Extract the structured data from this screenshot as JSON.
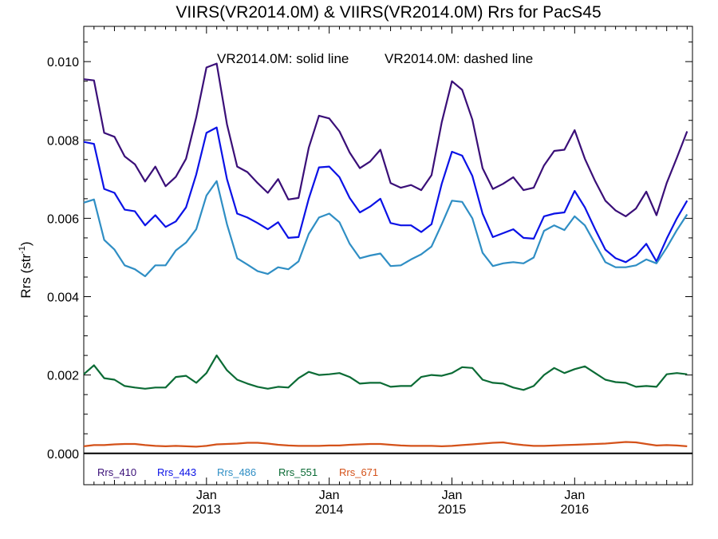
{
  "chart_data": {
    "type": "line",
    "title": "VIIRS(VR2014.0M) & VIIRS(VR2014.0M)  Rrs for PacS45",
    "annotation_solid": "VR2014.0M: solid line",
    "annotation_dashed": "VR2014.0M: dashed line",
    "ylabel_main": "Rrs (str",
    "ylabel_sup": "-1",
    "ylabel_end": ")",
    "xlabel": "",
    "ylim": [
      -0.0008,
      0.0109
    ],
    "xlim": [
      2012.0,
      2016.96
    ],
    "yticks": [
      {
        "value": 0.0,
        "label": "0.000"
      },
      {
        "value": 0.002,
        "label": "0.002"
      },
      {
        "value": 0.004,
        "label": "0.004"
      },
      {
        "value": 0.006,
        "label": "0.006"
      },
      {
        "value": 0.008,
        "label": "0.008"
      },
      {
        "value": 0.01,
        "label": "0.010"
      }
    ],
    "xticks": [
      {
        "value": 2013.0,
        "label_top": "Jan",
        "label_bottom": "2013"
      },
      {
        "value": 2014.0,
        "label_top": "Jan",
        "label_bottom": "2014"
      },
      {
        "value": 2015.0,
        "label_top": "Jan",
        "label_bottom": "2015"
      },
      {
        "value": 2016.0,
        "label_top": "Jan",
        "label_bottom": "2016"
      }
    ],
    "x_start": 2012.0,
    "x_step_months": 1,
    "grid": false,
    "legend_position": "bottom-left",
    "series": [
      {
        "name": "Rrs_410",
        "color": "#3a0f78",
        "values": [
          0.00955,
          0.00952,
          0.00818,
          0.00808,
          0.00758,
          0.00738,
          0.00694,
          0.00732,
          0.00682,
          0.00706,
          0.00752,
          0.00858,
          0.00985,
          0.00995,
          0.0084,
          0.00732,
          0.00718,
          0.0069,
          0.00665,
          0.007,
          0.00648,
          0.00652,
          0.0078,
          0.00862,
          0.00855,
          0.00822,
          0.00768,
          0.00728,
          0.00745,
          0.00775,
          0.0069,
          0.00678,
          0.00685,
          0.00672,
          0.0071,
          0.00845,
          0.0095,
          0.00928,
          0.00852,
          0.00728,
          0.00675,
          0.00688,
          0.00705,
          0.00672,
          0.00678,
          0.00735,
          0.00772,
          0.00775,
          0.00825,
          0.00752,
          0.00695,
          0.00645,
          0.0062,
          0.00605,
          0.00625,
          0.00668,
          0.00608,
          0.0069,
          0.00755,
          0.00822
        ]
      },
      {
        "name": "Rrs_443",
        "color": "#0b12e6",
        "values": [
          0.00795,
          0.0079,
          0.00675,
          0.00665,
          0.00622,
          0.00618,
          0.00582,
          0.00608,
          0.00578,
          0.00592,
          0.00628,
          0.00712,
          0.00818,
          0.00832,
          0.007,
          0.00612,
          0.00602,
          0.00588,
          0.00572,
          0.0059,
          0.0055,
          0.00552,
          0.0065,
          0.0073,
          0.00732,
          0.00705,
          0.00652,
          0.00615,
          0.0063,
          0.0065,
          0.00588,
          0.00582,
          0.00582,
          0.00565,
          0.00585,
          0.00688,
          0.0077,
          0.0076,
          0.00708,
          0.00612,
          0.00552,
          0.00562,
          0.00572,
          0.0055,
          0.00548,
          0.00605,
          0.00612,
          0.00615,
          0.0067,
          0.00628,
          0.00572,
          0.0052,
          0.00498,
          0.00488,
          0.00505,
          0.00535,
          0.0049,
          0.00548,
          0.006,
          0.00645
        ]
      },
      {
        "name": "Rrs_486",
        "color": "#2f8ec4",
        "values": [
          0.0064,
          0.00648,
          0.00545,
          0.0052,
          0.0048,
          0.0047,
          0.00452,
          0.0048,
          0.0048,
          0.00518,
          0.00538,
          0.00572,
          0.00658,
          0.00695,
          0.00585,
          0.00498,
          0.00482,
          0.00465,
          0.00458,
          0.00475,
          0.0047,
          0.0049,
          0.0056,
          0.00602,
          0.00612,
          0.0059,
          0.00535,
          0.00498,
          0.00505,
          0.0051,
          0.00478,
          0.0048,
          0.00495,
          0.00508,
          0.00528,
          0.00585,
          0.00645,
          0.00642,
          0.006,
          0.00512,
          0.00478,
          0.00485,
          0.00488,
          0.00485,
          0.005,
          0.00568,
          0.00582,
          0.0057,
          0.00605,
          0.00582,
          0.00535,
          0.00488,
          0.00475,
          0.00475,
          0.0048,
          0.00495,
          0.00485,
          0.00525,
          0.0057,
          0.0061
        ]
      },
      {
        "name": "Rrs_551",
        "color": "#0b6b35",
        "values": [
          0.00202,
          0.00225,
          0.00192,
          0.00188,
          0.00172,
          0.00168,
          0.00165,
          0.00168,
          0.00168,
          0.00195,
          0.00198,
          0.0018,
          0.00205,
          0.0025,
          0.00212,
          0.00188,
          0.00178,
          0.0017,
          0.00165,
          0.0017,
          0.00168,
          0.00192,
          0.00208,
          0.002,
          0.00202,
          0.00205,
          0.00195,
          0.00178,
          0.0018,
          0.0018,
          0.0017,
          0.00172,
          0.00172,
          0.00195,
          0.002,
          0.00198,
          0.00205,
          0.0022,
          0.00218,
          0.00188,
          0.0018,
          0.00178,
          0.00168,
          0.00162,
          0.00172,
          0.002,
          0.00218,
          0.00205,
          0.00215,
          0.00222,
          0.00205,
          0.00188,
          0.00182,
          0.0018,
          0.0017,
          0.00172,
          0.0017,
          0.00202,
          0.00205,
          0.00202
        ]
      },
      {
        "name": "Rrs_671",
        "color": "#d4521a",
        "values": [
          0.00018,
          0.00021,
          0.00021,
          0.00023,
          0.00024,
          0.00024,
          0.00021,
          0.00019,
          0.00018,
          0.00019,
          0.00018,
          0.00017,
          0.00019,
          0.00023,
          0.00024,
          0.00025,
          0.00027,
          0.00027,
          0.00025,
          0.00022,
          0.0002,
          0.00019,
          0.00019,
          0.00019,
          0.0002,
          0.0002,
          0.00022,
          0.00023,
          0.00024,
          0.00024,
          0.00022,
          0.0002,
          0.00019,
          0.00019,
          0.00019,
          0.00018,
          0.00019,
          0.00021,
          0.00023,
          0.00025,
          0.00027,
          0.00028,
          0.00024,
          0.00021,
          0.00019,
          0.00019,
          0.0002,
          0.00021,
          0.00022,
          0.00023,
          0.00024,
          0.00025,
          0.00027,
          0.00029,
          0.00028,
          0.00024,
          0.0002,
          0.00021,
          0.0002,
          0.00018
        ]
      }
    ]
  }
}
